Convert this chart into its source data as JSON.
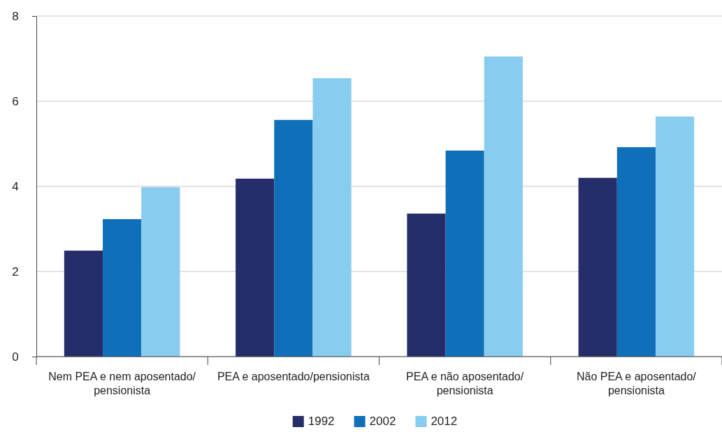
{
  "chart_data": {
    "type": "bar",
    "categories": [
      "Nem PEA e nem aposentado/pensionista",
      "PEA e aposentado/pensionista",
      "PEA e não aposentado/pensionista",
      "Não PEA e aposentado/pensionista"
    ],
    "series": [
      {
        "name": "1992",
        "color": "#252e6b",
        "values": [
          2.49,
          4.18,
          3.36,
          4.2
        ]
      },
      {
        "name": "2002",
        "color": "#0f6fb8",
        "values": [
          3.23,
          5.56,
          4.84,
          4.92
        ]
      },
      {
        "name": "2012",
        "color": "#88ccef",
        "values": [
          3.98,
          6.54,
          7.05,
          5.64
        ]
      }
    ],
    "ylim": [
      0,
      8
    ],
    "yticks": [
      0,
      2,
      4,
      6,
      8
    ],
    "grid": "y",
    "legend": "bottom"
  }
}
